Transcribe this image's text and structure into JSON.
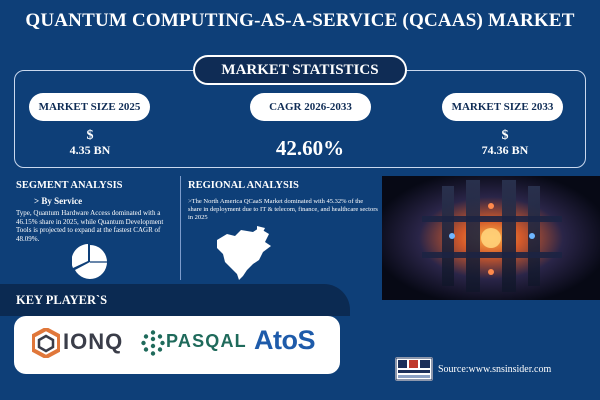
{
  "title": "QUANTUM COMPUTING-AS-A-SERVICE (QCAAS) MARKET",
  "stats": {
    "heading": "MARKET STATISTICS",
    "items": [
      {
        "label": "MARKET SIZE 2025",
        "prefix": "$",
        "value": "4.35 BN"
      },
      {
        "label": "CAGR 2026-2033",
        "value": "42.60%"
      },
      {
        "label": "MARKET SIZE 2033",
        "prefix": "$",
        "value": "74.36 BN"
      }
    ]
  },
  "segment": {
    "heading": "SEGMENT ANALYSIS",
    "subheading": "> By Service",
    "body": "Type, Quantum Hardware Access dominated with a 46.15% share in 2025, while Quantum Development Tools is projected to expand at the fastest CAGR of 48.09%."
  },
  "regional": {
    "heading": "REGIONAL ANALYSIS",
    "body": ">The North America QCaaS Market dominated with 45.32% of the share in deployment due to IT & telecom, finance, and healthcare sectors in 2025"
  },
  "key_players": {
    "heading": "KEY PLAYER`S",
    "logos": [
      "IONQ",
      "PASQAL",
      "AtoS"
    ]
  },
  "source": "Source:www.snsinsider.com",
  "colors": {
    "background": "#0e3f78",
    "dark_band": "#0b2a52",
    "pill_text": "#0f2c55",
    "ionq": "#3a3d49",
    "pasqal": "#1f6a5b",
    "atos": "#1e5baa"
  },
  "icons": [
    "pie-chart-icon",
    "north-america-map-icon",
    "quantum-computer-image",
    "ionq-logo-mark",
    "pasqal-logo-mark",
    "sns-insider-logo"
  ]
}
